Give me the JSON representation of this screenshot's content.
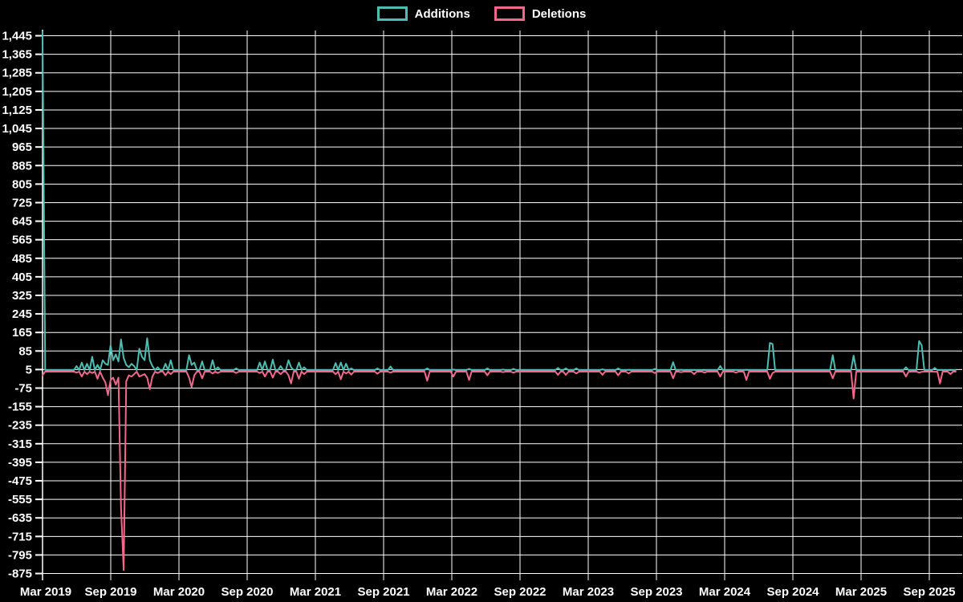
{
  "legend": {
    "position": "top",
    "items": [
      {
        "label": "Additions",
        "color": "#4bbdb2"
      },
      {
        "label": "Deletions",
        "color": "#f4678d"
      }
    ]
  },
  "theme": {
    "background": "#000000",
    "grid_color": "#ffffff",
    "axis_color": "#ffffff",
    "label_color": "#ffffff"
  },
  "chart_data": {
    "type": "line",
    "title": "",
    "xlabel": "",
    "ylabel": "",
    "grid": true,
    "legend_position": "top",
    "x_tick_labels": [
      "Mar 2019",
      "Sep 2019",
      "Mar 2020",
      "Sep 2020",
      "Mar 2021",
      "Sep 2021",
      "Mar 2022",
      "Sep 2022",
      "Mar 2023",
      "Sep 2023",
      "Mar 2024",
      "Sep 2024",
      "Mar 2025",
      "Sep 2025"
    ],
    "y_ticks": [
      1445,
      1365,
      1285,
      1205,
      1125,
      1045,
      965,
      885,
      805,
      725,
      645,
      565,
      485,
      405,
      325,
      245,
      165,
      85,
      5,
      -75,
      -155,
      -235,
      -315,
      -395,
      -475,
      -555,
      -635,
      -715,
      -795,
      -875
    ],
    "y_tick_labels": [
      "1,445",
      "1,365",
      "1,285",
      "1,205",
      "1,125",
      "1,045",
      "965",
      "885",
      "805",
      "725",
      "645",
      "565",
      "485",
      "405",
      "325",
      "245",
      "165",
      "85",
      "5",
      "-75",
      "-155",
      "-235",
      "-315",
      "-395",
      "-475",
      "-555",
      "-635",
      "-715",
      "-795",
      "-875"
    ],
    "ylim": [
      -875,
      1445
    ],
    "weeks_per_tick_interval": 26,
    "total_weeks": 350,
    "series_defaults": {
      "additions": 3,
      "deletions": -4
    },
    "series_names": [
      "Additions",
      "Deletions"
    ],
    "series_colors": [
      "#4bbdb2",
      "#f4678d"
    ],
    "points_format": [
      "week_index",
      "additions",
      "deletions"
    ],
    "points": [
      [
        0,
        1461,
        -20
      ],
      [
        13,
        20,
        -8
      ],
      [
        15,
        35,
        -25
      ],
      [
        17,
        30,
        -15
      ],
      [
        19,
        60,
        -10
      ],
      [
        21,
        25,
        -35
      ],
      [
        23,
        45,
        -30
      ],
      [
        24,
        30,
        -50
      ],
      [
        25,
        25,
        -105
      ],
      [
        26,
        110,
        -40
      ],
      [
        27,
        45,
        -30
      ],
      [
        28,
        70,
        -60
      ],
      [
        29,
        40,
        -30
      ],
      [
        30,
        135,
        -590
      ],
      [
        31,
        55,
        -860
      ],
      [
        32,
        25,
        -45
      ],
      [
        33,
        15,
        -20
      ],
      [
        34,
        30,
        -25
      ],
      [
        35,
        20,
        -15
      ],
      [
        37,
        95,
        -25
      ],
      [
        38,
        60,
        -20
      ],
      [
        39,
        45,
        -15
      ],
      [
        40,
        140,
        -30
      ],
      [
        41,
        45,
        -80
      ],
      [
        42,
        20,
        -25
      ],
      [
        44,
        15,
        -10
      ],
      [
        47,
        30,
        -20
      ],
      [
        49,
        45,
        -15
      ],
      [
        56,
        67,
        -30
      ],
      [
        57,
        25,
        -71
      ],
      [
        58,
        35,
        -20
      ],
      [
        61,
        40,
        -33
      ],
      [
        65,
        45,
        -12
      ],
      [
        67,
        15,
        -10
      ],
      [
        74,
        10,
        -10
      ],
      [
        83,
        35,
        -10
      ],
      [
        85,
        40,
        -25
      ],
      [
        88,
        48,
        -30
      ],
      [
        91,
        20,
        -15
      ],
      [
        94,
        45,
        -20
      ],
      [
        95,
        15,
        -55
      ],
      [
        98,
        35,
        -35
      ],
      [
        100,
        15,
        -15
      ],
      [
        112,
        33,
        -15
      ],
      [
        114,
        35,
        -37
      ],
      [
        116,
        30,
        -12
      ],
      [
        118,
        10,
        -17
      ],
      [
        128,
        10,
        -13
      ],
      [
        133,
        18,
        -8
      ],
      [
        147,
        10,
        -43
      ],
      [
        157,
        5,
        -25
      ],
      [
        163,
        8,
        -40
      ],
      [
        170,
        10,
        -20
      ],
      [
        176,
        5,
        -6
      ],
      [
        180,
        8,
        -9
      ],
      [
        197,
        12,
        -18
      ],
      [
        200,
        10,
        -18
      ],
      [
        204,
        10,
        -12
      ],
      [
        214,
        6,
        -18
      ],
      [
        220,
        10,
        -20
      ],
      [
        224,
        4,
        -12
      ],
      [
        234,
        8,
        -10
      ],
      [
        241,
        37,
        -33
      ],
      [
        244,
        4,
        -6
      ],
      [
        249,
        3,
        -15
      ],
      [
        253,
        2,
        -8
      ],
      [
        259,
        20,
        -25
      ],
      [
        265,
        3,
        -8
      ],
      [
        269,
        4,
        -40
      ],
      [
        278,
        120,
        -35
      ],
      [
        279,
        115,
        -10
      ],
      [
        302,
        67,
        -33
      ],
      [
        310,
        65,
        -120
      ],
      [
        330,
        15,
        -25
      ],
      [
        335,
        128,
        -8
      ],
      [
        336,
        110,
        -5
      ],
      [
        341,
        12,
        -5
      ],
      [
        343,
        3,
        -55
      ],
      [
        347,
        2,
        -15
      ]
    ]
  }
}
